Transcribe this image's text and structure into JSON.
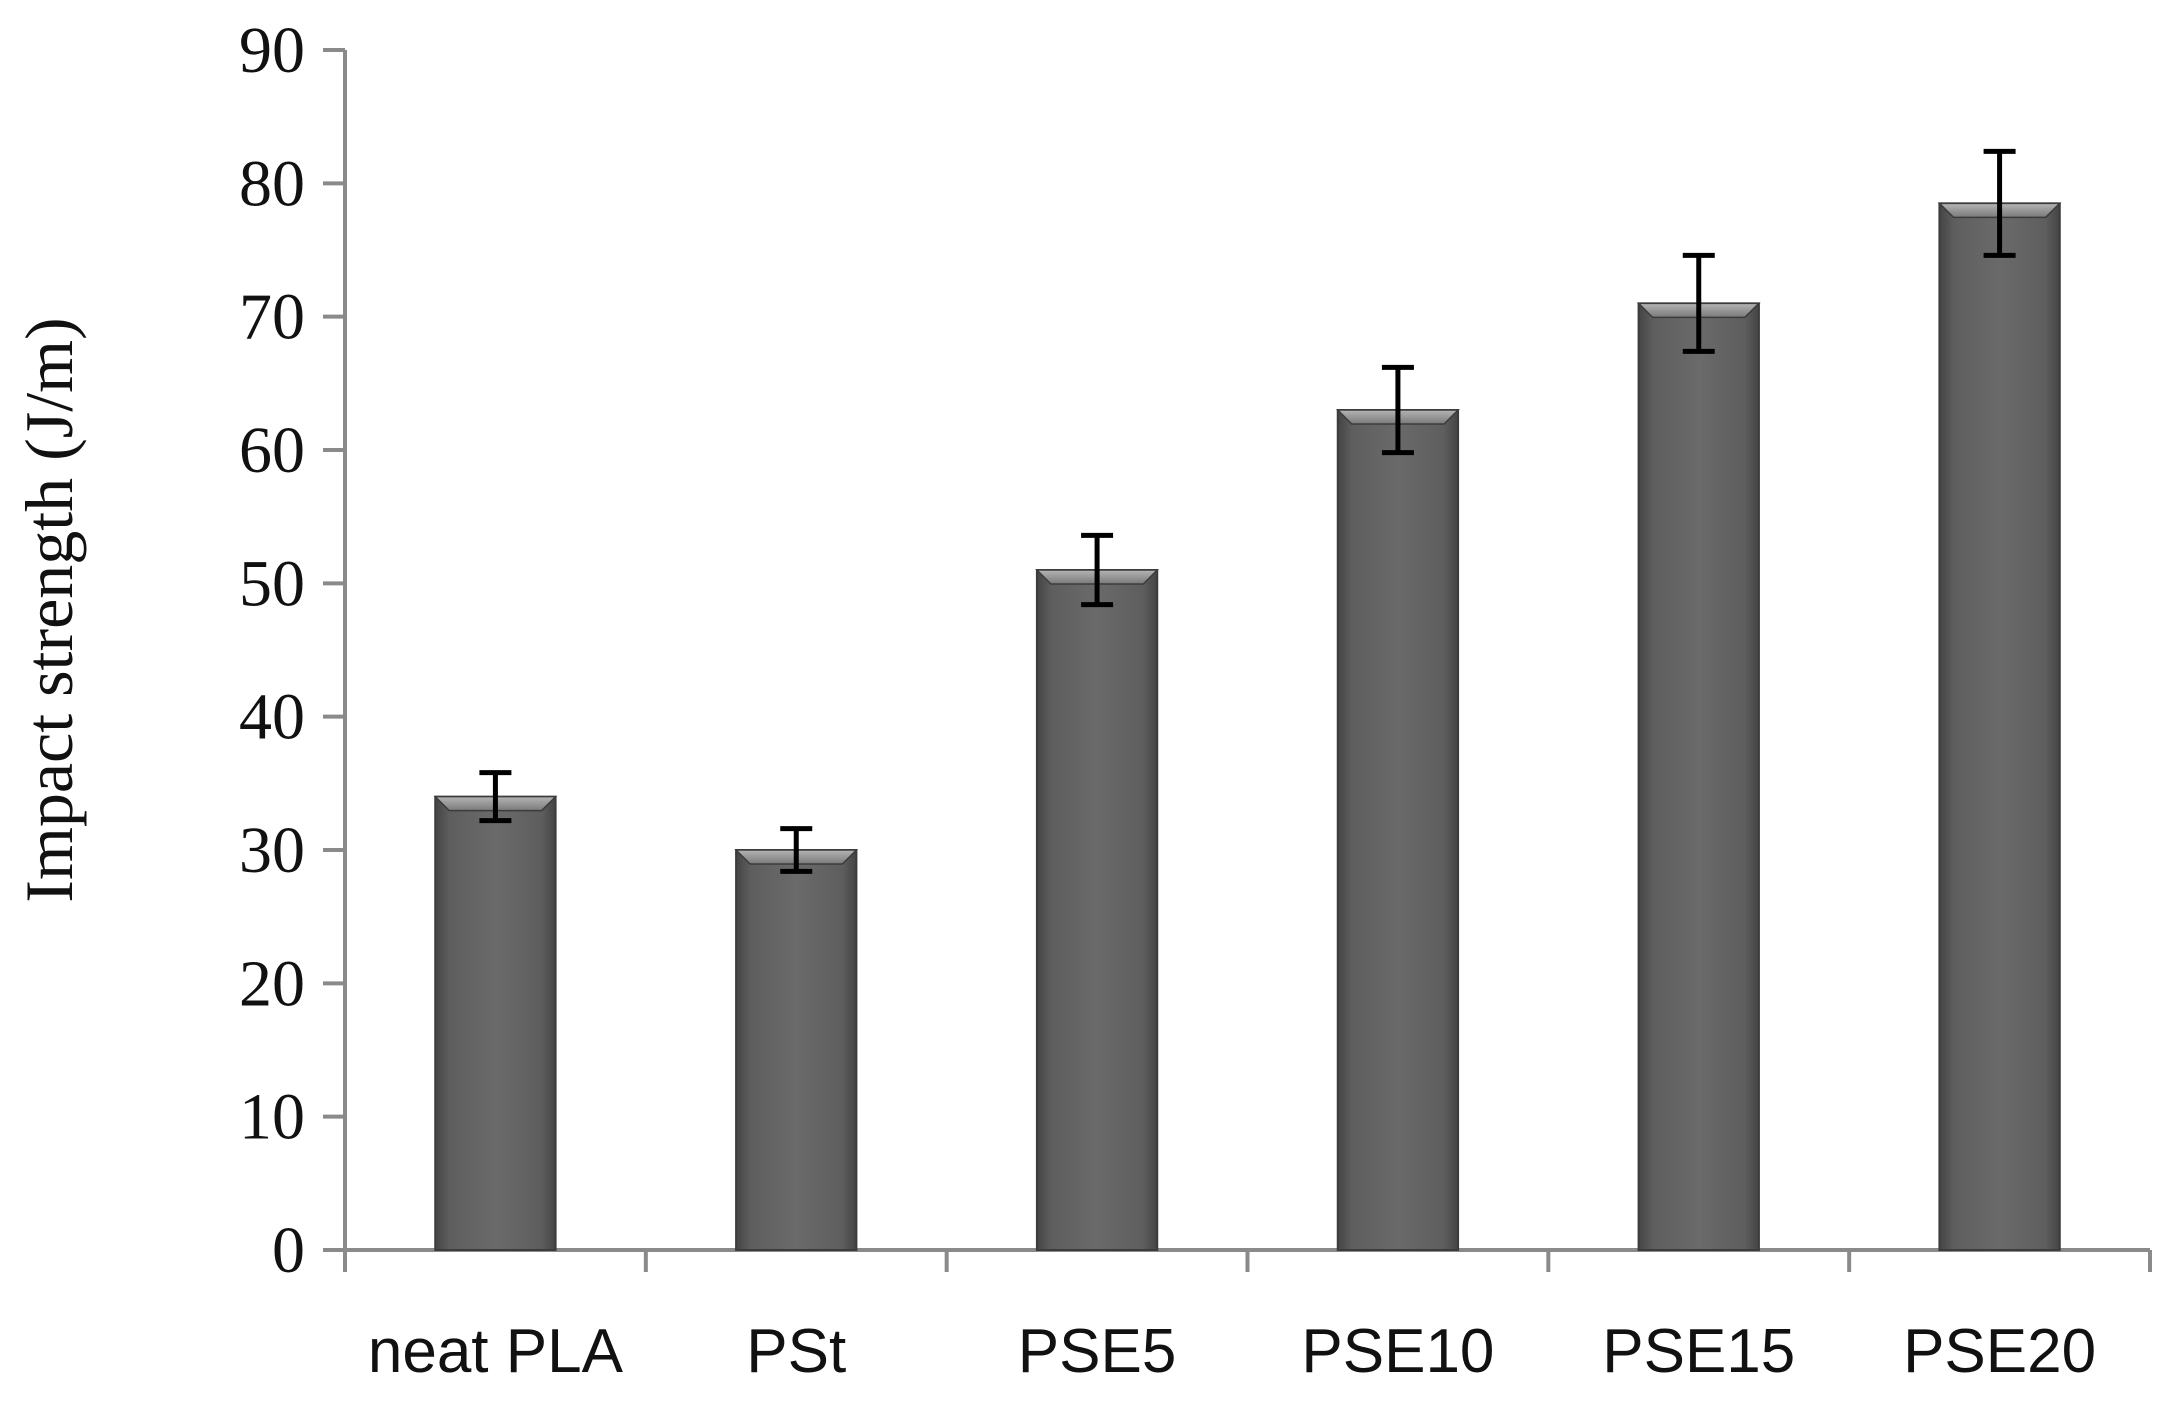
{
  "chart_data": {
    "type": "bar",
    "title": "",
    "xlabel": "",
    "ylabel": "Impact strength (J/m)",
    "ylim": [
      0,
      90
    ],
    "yticks": [
      0,
      10,
      20,
      30,
      40,
      50,
      60,
      70,
      80,
      90
    ],
    "grid": false,
    "categories": [
      "neat PLA",
      "PSt",
      "PSE5",
      "PSE10",
      "PSE15",
      "PSE20"
    ],
    "series": [
      {
        "name": "Impact strength",
        "values": [
          34,
          30,
          51,
          63,
          71,
          78.5
        ],
        "errors": [
          1.8,
          1.6,
          2.6,
          3.2,
          3.6,
          3.9
        ]
      }
    ],
    "colors": {
      "bar": "#5a5a5a",
      "bar_edge": "#3c3c3c",
      "error_bar": "#000000",
      "axis": "#8a8a8a"
    }
  }
}
